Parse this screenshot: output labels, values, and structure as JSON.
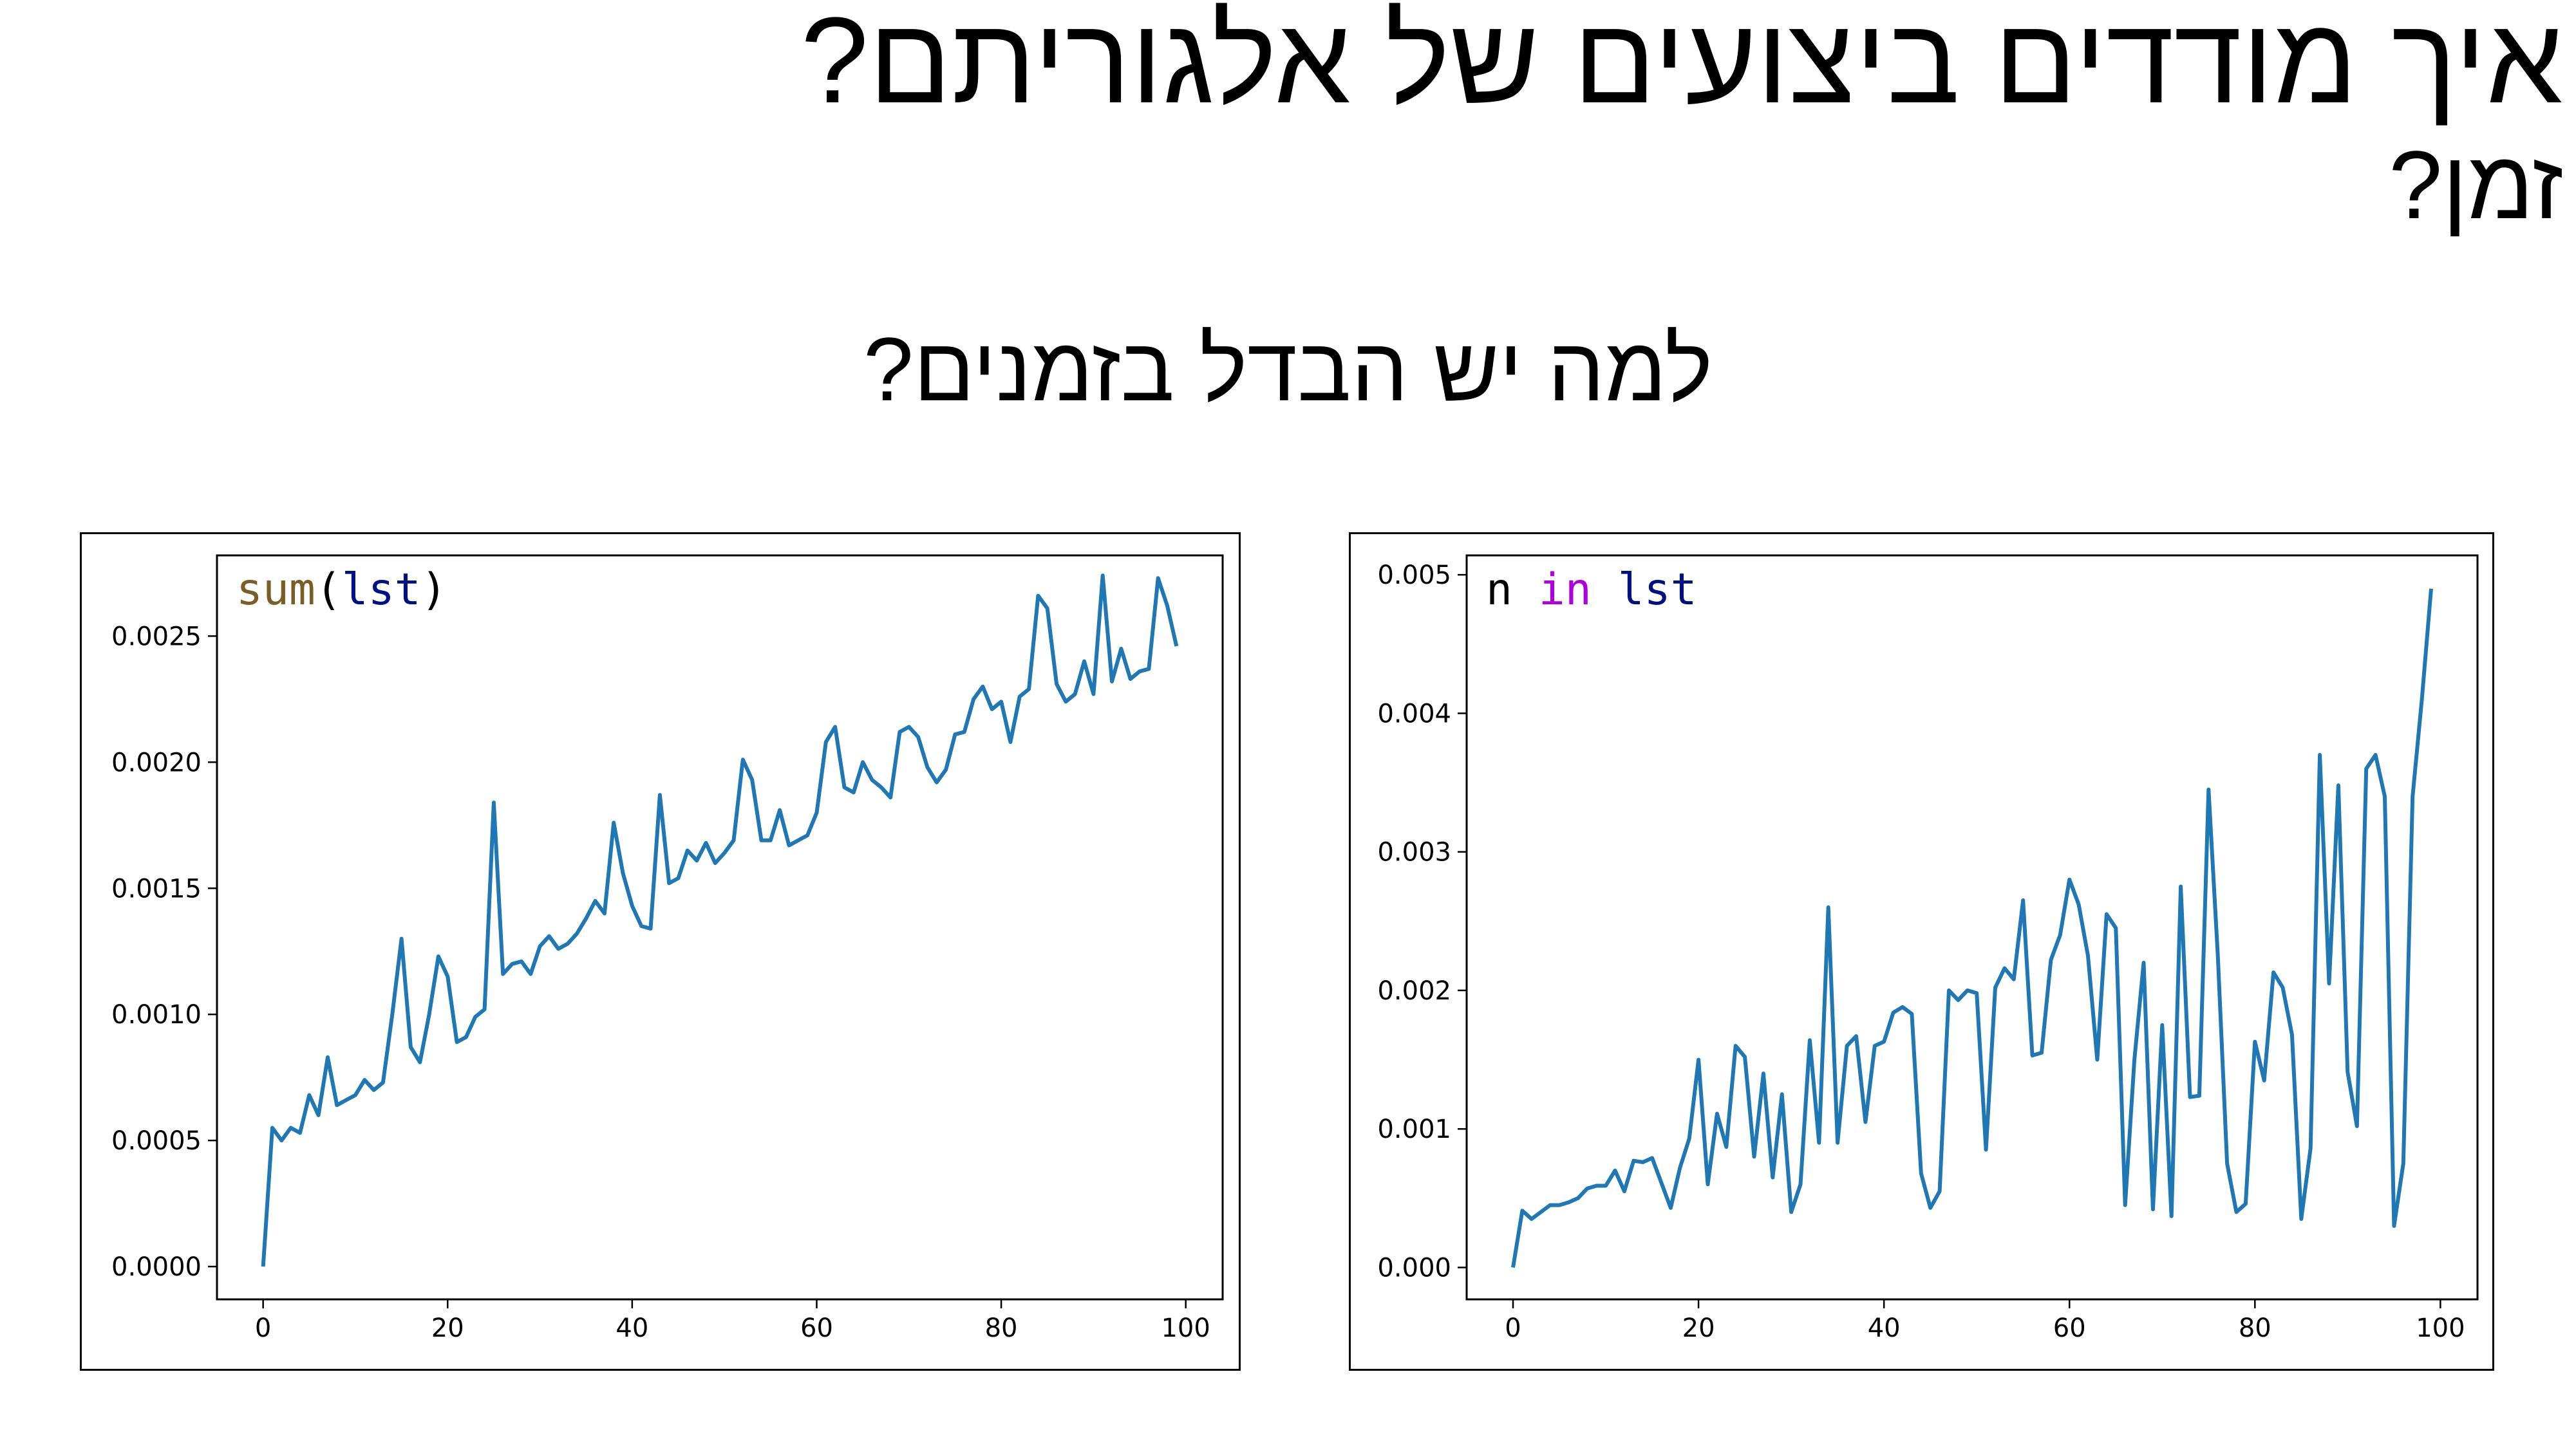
{
  "slide": {
    "title": "איך מודדים ביצועים של אלגוריתם?",
    "subtitle": "זמן?",
    "heading": "למה יש הבדל בזמנים?"
  },
  "colors": {
    "line": "#1f77b4",
    "code_function": "#795e26",
    "code_name": "#001080",
    "code_keyword": "#af00db",
    "code_plain": "#000000"
  },
  "chart_data": [
    {
      "type": "line",
      "annotation": [
        {
          "text": "sum",
          "color": "#795e26"
        },
        {
          "text": "(",
          "color": "#000000"
        },
        {
          "text": "lst",
          "color": "#001080"
        },
        {
          "text": ")",
          "color": "#000000"
        }
      ],
      "xlim": [
        -5,
        104
      ],
      "ylim": [
        -0.00013,
        0.00282
      ],
      "xticks": [
        0,
        20,
        40,
        60,
        80,
        100
      ],
      "xtick_labels": [
        "0",
        "20",
        "40",
        "60",
        "80",
        "100"
      ],
      "yticks": [
        0,
        0.0005,
        0.001,
        0.0015,
        0.002,
        0.0025
      ],
      "ytick_labels": [
        "0.0000",
        "0.0005",
        "0.0010",
        "0.0015",
        "0.0020",
        "0.0025"
      ],
      "y": [
        0.0,
        0.00055,
        0.0005,
        0.00055,
        0.00053,
        0.00068,
        0.0006,
        0.00083,
        0.00064,
        0.00066,
        0.00068,
        0.00074,
        0.0007,
        0.00073,
        0.001,
        0.0013,
        0.00087,
        0.00081,
        0.001,
        0.00123,
        0.00115,
        0.00089,
        0.00091,
        0.00099,
        0.00102,
        0.00184,
        0.00116,
        0.0012,
        0.00121,
        0.00116,
        0.00127,
        0.00131,
        0.00126,
        0.00128,
        0.00132,
        0.00138,
        0.00145,
        0.0014,
        0.00176,
        0.00156,
        0.00143,
        0.00135,
        0.00134,
        0.00187,
        0.00152,
        0.00154,
        0.00165,
        0.00161,
        0.00168,
        0.0016,
        0.00164,
        0.00169,
        0.00201,
        0.00193,
        0.00169,
        0.00169,
        0.00181,
        0.00167,
        0.00169,
        0.00171,
        0.0018,
        0.00208,
        0.00214,
        0.0019,
        0.00188,
        0.002,
        0.00193,
        0.0019,
        0.00186,
        0.00212,
        0.00214,
        0.0021,
        0.00198,
        0.00192,
        0.00197,
        0.00211,
        0.00212,
        0.00225,
        0.0023,
        0.00221,
        0.00224,
        0.00208,
        0.00226,
        0.00229,
        0.00266,
        0.00261,
        0.00231,
        0.00224,
        0.00227,
        0.0024,
        0.00227,
        0.00274,
        0.00232,
        0.00245,
        0.00233,
        0.00236,
        0.00237,
        0.00273,
        0.00262,
        0.00246
      ]
    },
    {
      "type": "line",
      "annotation": [
        {
          "text": "n ",
          "color": "#000000"
        },
        {
          "text": "in",
          "color": "#af00db"
        },
        {
          "text": " ",
          "color": "#000000"
        },
        {
          "text": "lst",
          "color": "#001080"
        }
      ],
      "xlim": [
        -5,
        104
      ],
      "ylim": [
        -0.00023,
        0.00514
      ],
      "xticks": [
        0,
        20,
        40,
        60,
        80,
        100
      ],
      "xtick_labels": [
        "0",
        "20",
        "40",
        "60",
        "80",
        "100"
      ],
      "yticks": [
        0,
        0.001,
        0.002,
        0.003,
        0.004,
        0.005
      ],
      "ytick_labels": [
        "0.000",
        "0.001",
        "0.002",
        "0.003",
        "0.004",
        "0.005"
      ],
      "y": [
        0.0,
        0.00041,
        0.00035,
        0.0004,
        0.00045,
        0.00045,
        0.00047,
        0.0005,
        0.00057,
        0.00059,
        0.00059,
        0.0007,
        0.00055,
        0.00077,
        0.00076,
        0.00079,
        0.00061,
        0.00043,
        0.00072,
        0.00093,
        0.0015,
        0.0006,
        0.00111,
        0.00087,
        0.0016,
        0.00152,
        0.0008,
        0.0014,
        0.00065,
        0.00125,
        0.0004,
        0.0006,
        0.00164,
        0.0009,
        0.0026,
        0.0009,
        0.0016,
        0.00167,
        0.00105,
        0.0016,
        0.00163,
        0.00184,
        0.00188,
        0.00183,
        0.00068,
        0.00043,
        0.00055,
        0.002,
        0.00193,
        0.002,
        0.00198,
        0.00085,
        0.00202,
        0.00216,
        0.00208,
        0.00265,
        0.00153,
        0.00155,
        0.00222,
        0.0024,
        0.0028,
        0.00262,
        0.00225,
        0.0015,
        0.00255,
        0.00245,
        0.00045,
        0.0015,
        0.0022,
        0.00042,
        0.00175,
        0.00037,
        0.00275,
        0.00123,
        0.00124,
        0.00345,
        0.00225,
        0.00075,
        0.0004,
        0.00046,
        0.00163,
        0.00135,
        0.00213,
        0.00202,
        0.00168,
        0.00035,
        0.00086,
        0.0037,
        0.00205,
        0.00348,
        0.00141,
        0.00102,
        0.0036,
        0.0037,
        0.0034,
        0.0003,
        0.00075,
        0.0034,
        0.0041,
        0.0049
      ]
    }
  ]
}
